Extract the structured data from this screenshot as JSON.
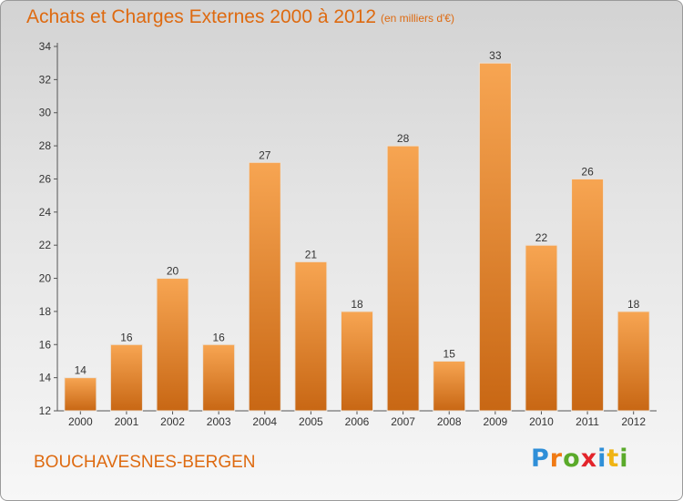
{
  "header": {
    "title": "Achats et Charges Externes 2000 à 2012",
    "subtitle": "(en milliers d'€)"
  },
  "footer": {
    "place": "BOUCHAVESNES-BERGEN",
    "brand_letters": [
      "P",
      "r",
      "o",
      "x",
      "i",
      "t",
      "i"
    ],
    "brand_colors": [
      "#2f8fd8",
      "#f07a14",
      "#5aaa2a",
      "#e3242b",
      "#2f8fd8",
      "#f0b414",
      "#5aaa2a"
    ]
  },
  "colors": {
    "bar_light": "#f7a552",
    "bar_dark": "#c86714",
    "accent": "#de6a10"
  },
  "chart_data": {
    "type": "bar",
    "title": "Achats et Charges Externes 2000 à 2012",
    "subtitle": "(en milliers d'€)",
    "categories": [
      "2000",
      "2001",
      "2002",
      "2003",
      "2004",
      "2005",
      "2006",
      "2007",
      "2008",
      "2009",
      "2010",
      "2011",
      "2012"
    ],
    "values": [
      14,
      16,
      20,
      16,
      27,
      21,
      18,
      28,
      15,
      33,
      22,
      26,
      18
    ],
    "ylim": [
      12,
      34
    ],
    "yticks": [
      12,
      14,
      16,
      18,
      20,
      22,
      24,
      26,
      28,
      30,
      32,
      34
    ],
    "grid": false,
    "data_labels": true
  }
}
